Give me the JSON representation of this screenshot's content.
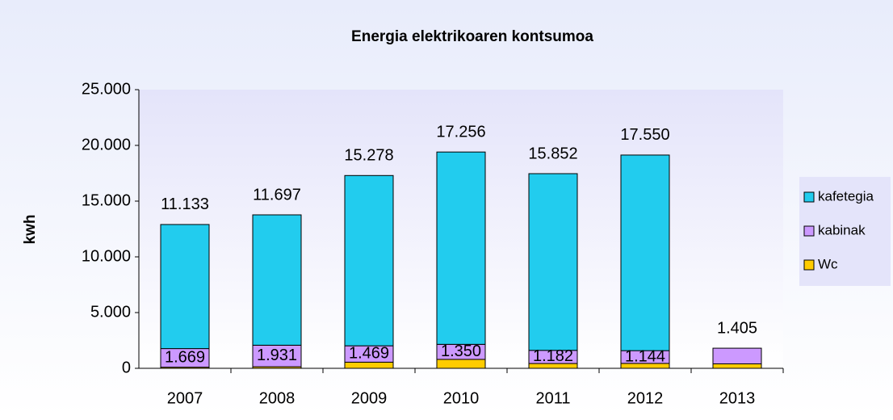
{
  "chart_data": {
    "type": "stacked_bar",
    "title": "Energia elektrikoaren kontsumoa",
    "y_label": "kwh",
    "categories": [
      "2007",
      "2008",
      "2009",
      "2010",
      "2011",
      "2012",
      "2013"
    ],
    "series": [
      {
        "name": "Wc",
        "color": "#ffcc00",
        "values": [
          100,
          140,
          550,
          800,
          430,
          440,
          400
        ]
      },
      {
        "name": "kabinak",
        "color": "#cc99ff",
        "values": [
          1669,
          1931,
          1469,
          1350,
          1182,
          1144,
          1405
        ],
        "value_labels": [
          "1.669",
          "1.931",
          "1.469",
          "1.350",
          "1.182",
          "1.144",
          "1.405"
        ]
      },
      {
        "name": "kafetegia",
        "color": "#22ccee",
        "values": [
          11133,
          11697,
          15278,
          17256,
          15852,
          17550,
          null
        ],
        "value_labels": [
          "11.133",
          "11.697",
          "15.278",
          "17.256",
          "15.852",
          "17.550",
          null
        ]
      }
    ],
    "ylim": [
      0,
      25000
    ],
    "yticks": [
      0,
      {
        "value": 5000,
        "label": "5.000"
      },
      {
        "value": 10000,
        "label": "10.000"
      },
      {
        "value": 15000,
        "label": "15.000"
      },
      {
        "value": 20000,
        "label": "20.000"
      },
      {
        "value": 25000,
        "label": "25.000"
      }
    ],
    "legend": "right"
  }
}
